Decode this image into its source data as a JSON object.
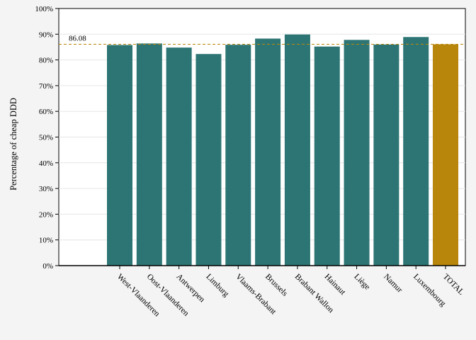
{
  "chart_data": {
    "type": "bar",
    "title": "",
    "xlabel": "",
    "ylabel": "Percentage of cheap DDD",
    "ylim": [
      0,
      100
    ],
    "yticks": [
      "0%",
      "10%",
      "20%",
      "30%",
      "40%",
      "50%",
      "60%",
      "70%",
      "80%",
      "90%",
      "100%"
    ],
    "categories": [
      "West-Vlaanderen",
      "Oost-Vlaanderen",
      "Antwerpen",
      "Limburg",
      "Vlaams-Brabant",
      "Brussels",
      "Brabant Wallon",
      "Hainaut",
      "Liège",
      "Namur",
      "Luxembourg",
      "TOTAL"
    ],
    "values": [
      85.8,
      86.4,
      84.8,
      82.3,
      85.9,
      88.3,
      89.9,
      85.2,
      87.8,
      86.0,
      88.9,
      86.08
    ],
    "highlight_category": "TOTAL",
    "reference_line": {
      "value": 86.08,
      "label": "86.08"
    },
    "grid": true,
    "legend": "none",
    "colors": {
      "bar": "#2d7574",
      "total_bar": "#b8860b",
      "reference_line": "#b8860b",
      "plot_background": "#ffffff",
      "page_background": "#f4f4f4",
      "grid": "#e6e6e6"
    }
  }
}
